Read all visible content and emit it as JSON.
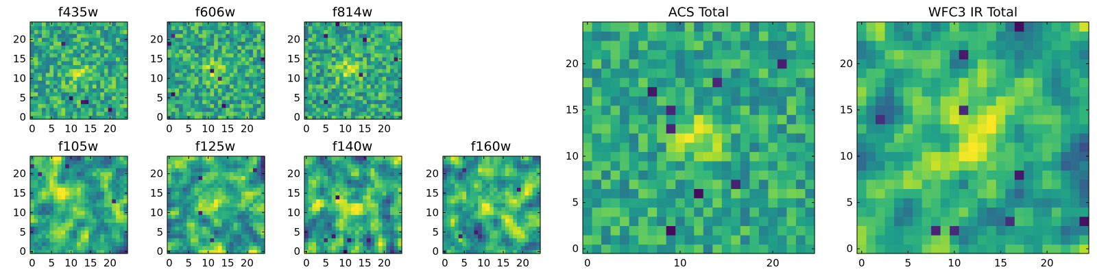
{
  "chart_data": [
    {
      "type": "heatmap",
      "title": "f435w",
      "grid_size": 25,
      "xlim": [
        0,
        24
      ],
      "ylim": [
        0,
        24
      ],
      "xticks": [
        0,
        5,
        10,
        15,
        20
      ],
      "yticks": [
        0,
        5,
        10,
        15,
        20
      ],
      "peak": [
        12,
        11
      ],
      "seed": 11,
      "noise": 0.26,
      "smooth": 0,
      "peak_amp": 0.24,
      "peak_sigma": 2.2,
      "dark_spots": 5
    },
    {
      "type": "heatmap",
      "title": "f606w",
      "grid_size": 25,
      "xlim": [
        0,
        24
      ],
      "ylim": [
        0,
        24
      ],
      "xticks": [
        0,
        5,
        10,
        15,
        20
      ],
      "yticks": [
        0,
        5,
        10,
        15,
        20
      ],
      "peak": [
        12,
        12
      ],
      "seed": 23,
      "noise": 0.26,
      "smooth": 0,
      "peak_amp": 0.3,
      "peak_sigma": 2.0,
      "dark_spots": 7
    },
    {
      "type": "heatmap",
      "title": "f814w",
      "grid_size": 25,
      "xlim": [
        0,
        24
      ],
      "ylim": [
        0,
        24
      ],
      "xticks": [
        0,
        5,
        10,
        15,
        20
      ],
      "yticks": [
        0,
        5,
        10,
        15,
        20
      ],
      "peak": [
        11,
        12
      ],
      "seed": 37,
      "noise": 0.26,
      "smooth": 0,
      "peak_amp": 0.28,
      "peak_sigma": 2.2,
      "dark_spots": 6
    },
    {
      "type": "heatmap",
      "title": "f105w",
      "grid_size": 25,
      "xlim": [
        0,
        24
      ],
      "ylim": [
        0,
        24
      ],
      "xticks": [
        0,
        5,
        10,
        15,
        20
      ],
      "yticks": [
        0,
        5,
        10,
        15,
        20
      ],
      "peak": [
        11,
        12
      ],
      "seed": 41,
      "noise": 0.3,
      "smooth": 1,
      "peak_amp": 0.18,
      "peak_sigma": 3.0,
      "dark_spots": 4
    },
    {
      "type": "heatmap",
      "title": "f125w",
      "grid_size": 25,
      "xlim": [
        0,
        24
      ],
      "ylim": [
        0,
        24
      ],
      "xticks": [
        0,
        5,
        10,
        15,
        20
      ],
      "yticks": [
        0,
        5,
        10,
        15,
        20
      ],
      "peak": [
        12,
        13
      ],
      "seed": 53,
      "noise": 0.3,
      "smooth": 1,
      "peak_amp": 0.12,
      "peak_sigma": 3.0,
      "dark_spots": 4
    },
    {
      "type": "heatmap",
      "title": "f140w",
      "grid_size": 25,
      "xlim": [
        0,
        24
      ],
      "ylim": [
        0,
        24
      ],
      "xticks": [
        0,
        5,
        10,
        15,
        20
      ],
      "yticks": [
        0,
        5,
        10,
        15,
        20
      ],
      "peak": [
        12,
        12
      ],
      "seed": 67,
      "noise": 0.32,
      "smooth": 1,
      "peak_amp": 0.14,
      "peak_sigma": 3.0,
      "dark_spots": 5
    },
    {
      "type": "heatmap",
      "title": "f160w",
      "grid_size": 25,
      "xlim": [
        0,
        24
      ],
      "ylim": [
        0,
        24
      ],
      "xticks": [
        0,
        5,
        10,
        15,
        20
      ],
      "yticks": [
        0,
        5,
        10,
        15,
        20
      ],
      "peak": [
        12,
        12
      ],
      "seed": 79,
      "noise": 0.3,
      "smooth": 1,
      "peak_amp": 0.26,
      "peak_sigma": 2.6,
      "dark_spots": 5
    },
    {
      "type": "heatmap",
      "title": "ACS Total",
      "grid_size": 25,
      "xlim": [
        0,
        24
      ],
      "ylim": [
        0,
        24
      ],
      "xticks": [
        0,
        10,
        20
      ],
      "yticks": [
        0,
        5,
        10,
        15,
        20
      ],
      "peak": [
        12,
        12
      ],
      "seed": 97,
      "noise": 0.22,
      "smooth": 0,
      "peak_amp": 0.34,
      "peak_sigma": 1.8,
      "dark_spots": 8
    },
    {
      "type": "heatmap",
      "title": "WFC3 IR Total",
      "grid_size": 25,
      "xlim": [
        0,
        24
      ],
      "ylim": [
        0,
        24
      ],
      "xticks": [
        0,
        5,
        10,
        15,
        20
      ],
      "yticks": [
        0,
        5,
        10,
        15,
        20
      ],
      "peak": [
        12,
        12
      ],
      "seed": 113,
      "noise": 0.24,
      "smooth": 1,
      "peak_amp": 0.42,
      "peak_sigma": 2.6,
      "dark_spots": 10
    }
  ]
}
